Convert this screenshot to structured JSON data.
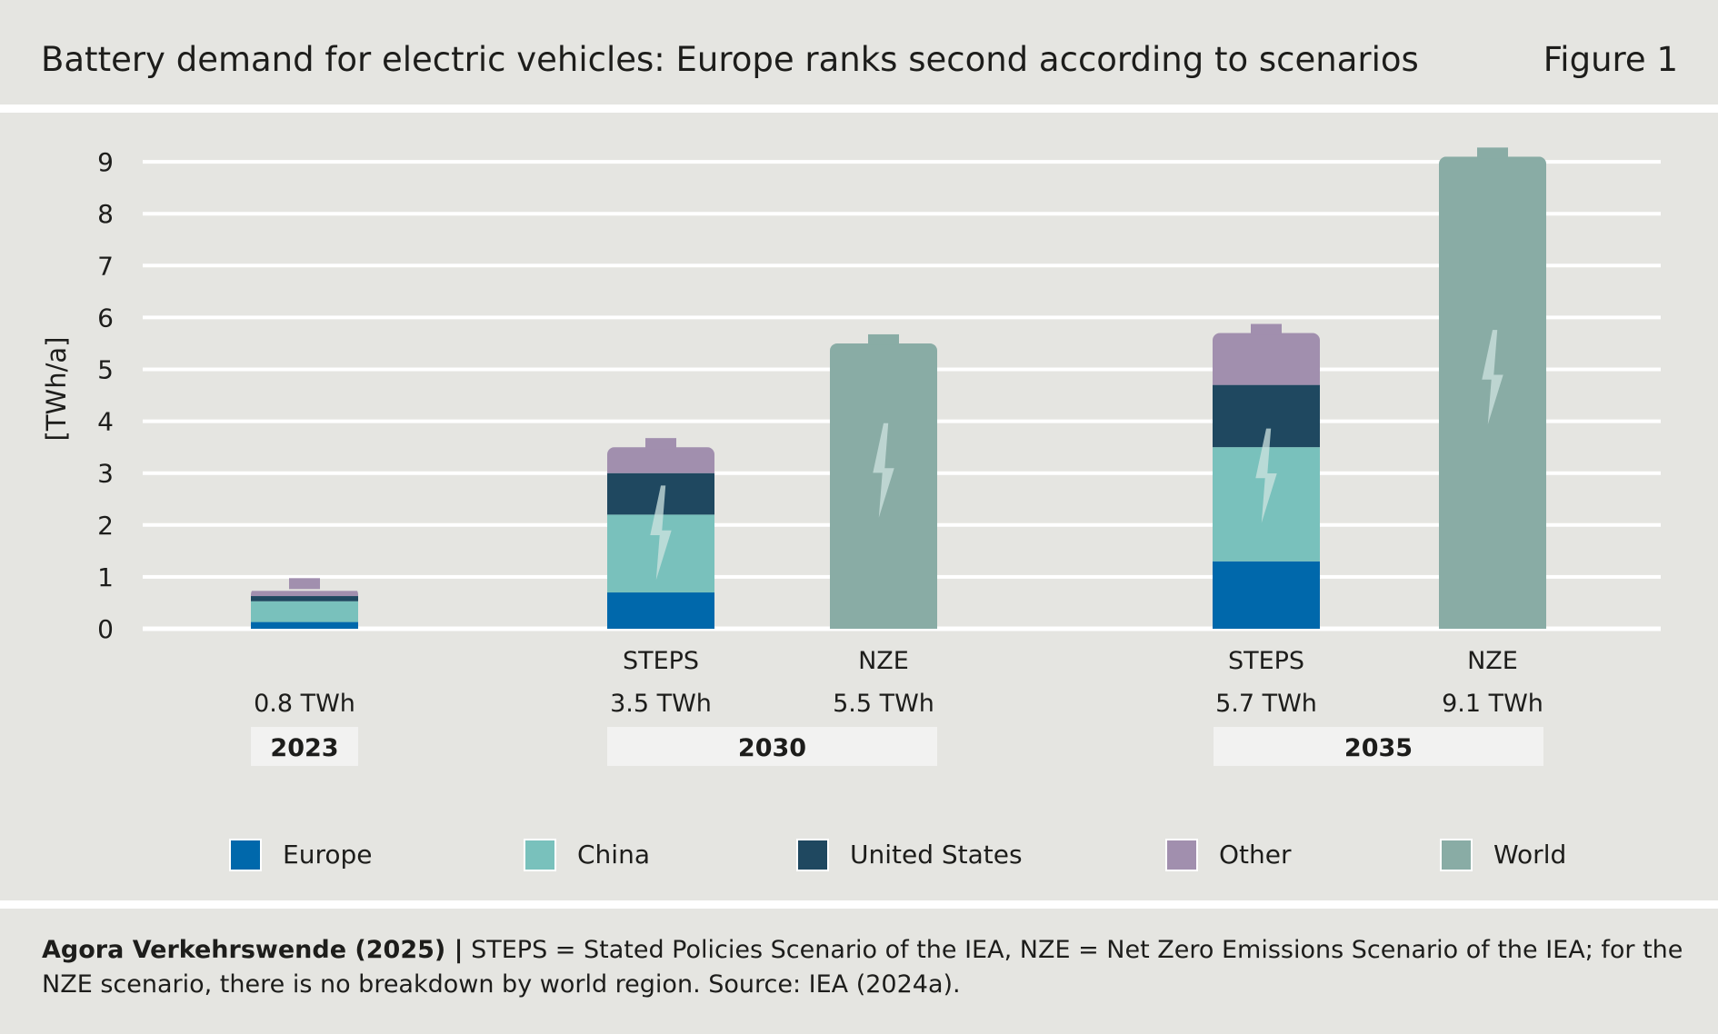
{
  "header": {
    "title": "Battery demand for electric vehicles: Europe ranks second according to scenarios",
    "figure_label": "Figure 1"
  },
  "footnote": {
    "source": "Agora Verkehrswende (2025) |",
    "text": " STEPS = Stated Policies Scenario of the IEA, NZE = Net Zero Emissions Scenario of the IEA; for the NZE scenario, there is no breakdown by world region. Source: IEA (2024a)."
  },
  "colors": {
    "Europe": "#0068ab",
    "China": "#79c1bc",
    "United States": "#1f4860",
    "Other": "#a18fae",
    "World": "#89aca5",
    "bolt": "#cfe3e0",
    "grid": "#ffffff",
    "year_box": "#f2f2f1",
    "background": "#e5e5e1"
  },
  "chart_data": {
    "type": "bar",
    "stacked": true,
    "ylabel": "[TWh/a]",
    "ylim": [
      0,
      9
    ],
    "yticks": [
      0,
      1,
      2,
      3,
      4,
      5,
      6,
      7,
      8,
      9
    ],
    "grid": true,
    "legend_position": "bottom",
    "legend": [
      "Europe",
      "China",
      "United States",
      "Other",
      "World"
    ],
    "bars": [
      {
        "year": "2023",
        "scenario": "",
        "total_label": "0.8 TWh",
        "total": 0.8,
        "segments": [
          {
            "series": "Europe",
            "value": 0.13
          },
          {
            "series": "China",
            "value": 0.4
          },
          {
            "series": "United States",
            "value": 0.1
          },
          {
            "series": "Other",
            "value": 0.1
          }
        ]
      },
      {
        "year": "2030",
        "scenario": "STEPS",
        "total_label": "3.5 TWh",
        "total": 3.5,
        "segments": [
          {
            "series": "Europe",
            "value": 0.7
          },
          {
            "series": "China",
            "value": 1.5
          },
          {
            "series": "United States",
            "value": 0.8
          },
          {
            "series": "Other",
            "value": 0.5
          }
        ]
      },
      {
        "year": "2030",
        "scenario": "NZE",
        "total_label": "5.5 TWh",
        "total": 5.5,
        "segments": [
          {
            "series": "World",
            "value": 5.5
          }
        ]
      },
      {
        "year": "2035",
        "scenario": "STEPS",
        "total_label": "5.7 TWh",
        "total": 5.7,
        "segments": [
          {
            "series": "Europe",
            "value": 1.3
          },
          {
            "series": "China",
            "value": 2.2
          },
          {
            "series": "United States",
            "value": 1.2
          },
          {
            "series": "Other",
            "value": 1.0
          }
        ]
      },
      {
        "year": "2035",
        "scenario": "NZE",
        "total_label": "9.1 TWh",
        "total": 9.1,
        "segments": [
          {
            "series": "World",
            "value": 9.1
          }
        ]
      }
    ],
    "year_groups": [
      "2023",
      "2030",
      "2035"
    ]
  }
}
